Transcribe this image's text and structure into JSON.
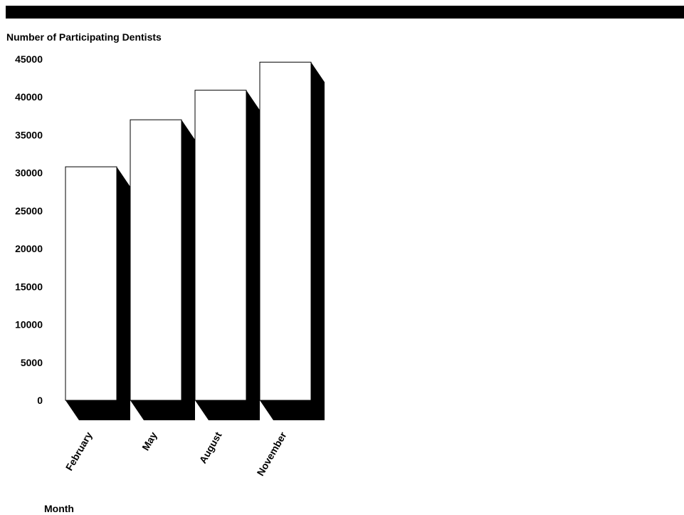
{
  "colors": {
    "bar_face": "#ffffff",
    "bar_outline": "#000000",
    "bar_shadow": "#000000",
    "top_bar": "#000000"
  },
  "chart_data": {
    "type": "bar",
    "title": "",
    "ylabel": "Number of Participating Dentists",
    "xlabel": "Month",
    "categories": [
      "February",
      "May",
      "August",
      "November"
    ],
    "values": [
      30800,
      37000,
      40900,
      44600
    ],
    "ylim": [
      0,
      45000
    ],
    "yticks": [
      "0",
      "5000",
      "10000",
      "15000",
      "20000",
      "25000",
      "30000",
      "35000",
      "40000",
      "45000"
    ],
    "style": "3d-shadow",
    "grid": false,
    "legend": "none"
  }
}
